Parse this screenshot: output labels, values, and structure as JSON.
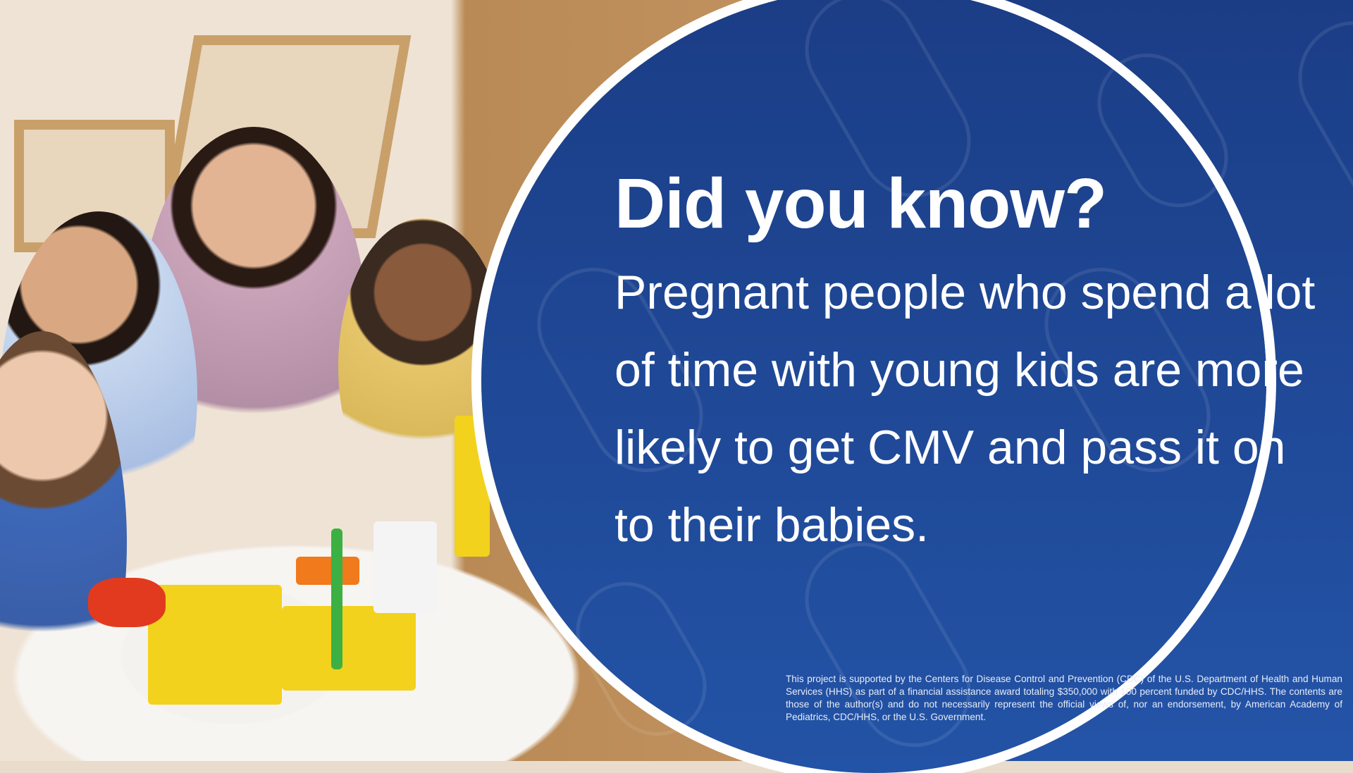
{
  "heading": "Did you know?",
  "body": "Pregnant people who spend a lot of time with young kids are more likely to get CMV and pass it on to their babies.",
  "disclaimer": "This project is supported by the Centers for Disease Control and Prevention (CDC) of the U.S. Department of Health and Human Services (HHS) as part of a financial assistance award totaling $350,000 with 100 percent funded by CDC/HHS. The contents are those of the author(s) and do not necessarily represent the official views of, nor an endorsement, by American Academy of Pediatrics, CDC/HHS, or the U.S. Government.",
  "colors": {
    "panel_blue": "#1f4c9e",
    "border": "#ffffff",
    "text": "#ffffff"
  }
}
